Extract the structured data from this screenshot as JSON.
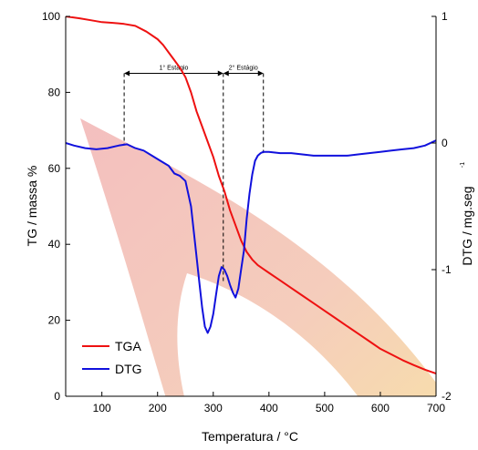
{
  "chart_data": {
    "type": "line",
    "xlabel": "Temperatura / °C",
    "ylabel_left": "TG / massa %",
    "ylabel_right_main": "DTG / mg.seg",
    "ylabel_right_exp": "-1",
    "xlim": [
      35,
      700
    ],
    "ylim_left": [
      0,
      100
    ],
    "ylim_right": [
      -2,
      1
    ],
    "xticks": [
      "100",
      "200",
      "300",
      "400",
      "500",
      "600",
      "700"
    ],
    "yticks_left": [
      "0",
      "20",
      "40",
      "60",
      "80",
      "100"
    ],
    "yticks_right": [
      "-2",
      "-1",
      "0",
      "1"
    ],
    "legend_position": "bottom-left",
    "colors": {
      "tga": "#ee1111",
      "dtg": "#1111dd"
    },
    "series": [
      {
        "name": "TGA",
        "axis": "left",
        "x": [
          35,
          60,
          80,
          100,
          120,
          140,
          160,
          180,
          200,
          210,
          220,
          230,
          240,
          250,
          260,
          270,
          280,
          290,
          300,
          310,
          320,
          330,
          340,
          350,
          360,
          370,
          380,
          390,
          400,
          420,
          440,
          460,
          480,
          500,
          520,
          540,
          560,
          580,
          600,
          620,
          640,
          660,
          680,
          700
        ],
        "y": [
          100,
          99.5,
          99,
          98.5,
          98.3,
          98,
          97.5,
          96,
          94,
          92.5,
          90.5,
          88.5,
          86.5,
          84,
          80,
          75,
          71,
          67,
          63,
          58,
          54,
          49,
          45,
          41,
          38,
          36,
          34.5,
          33.5,
          32.5,
          30.5,
          28.5,
          26.5,
          24.5,
          22.5,
          20.5,
          18.5,
          16.5,
          14.5,
          12.5,
          11,
          9.5,
          8.2,
          7,
          6
        ]
      },
      {
        "name": "DTG",
        "axis": "right",
        "x": [
          35,
          50,
          70,
          90,
          110,
          130,
          145,
          160,
          175,
          190,
          205,
          220,
          230,
          240,
          250,
          260,
          270,
          275,
          280,
          285,
          290,
          295,
          300,
          305,
          310,
          315,
          320,
          325,
          330,
          335,
          340,
          345,
          350,
          355,
          360,
          365,
          370,
          375,
          380,
          385,
          390,
          400,
          420,
          440,
          460,
          480,
          500,
          520,
          540,
          560,
          580,
          600,
          620,
          640,
          660,
          680,
          700
        ],
        "y": [
          0.0,
          -0.02,
          -0.04,
          -0.05,
          -0.04,
          -0.02,
          -0.01,
          -0.04,
          -0.06,
          -0.1,
          -0.14,
          -0.18,
          -0.24,
          -0.26,
          -0.3,
          -0.5,
          -0.9,
          -1.1,
          -1.3,
          -1.45,
          -1.5,
          -1.45,
          -1.35,
          -1.2,
          -1.05,
          -0.98,
          -1.0,
          -1.05,
          -1.12,
          -1.18,
          -1.22,
          -1.15,
          -1.0,
          -0.85,
          -0.6,
          -0.4,
          -0.25,
          -0.14,
          -0.1,
          -0.08,
          -0.07,
          -0.07,
          -0.08,
          -0.08,
          -0.09,
          -0.1,
          -0.1,
          -0.1,
          -0.1,
          -0.09,
          -0.08,
          -0.07,
          -0.06,
          -0.05,
          -0.04,
          -0.02,
          0.02
        ]
      }
    ],
    "stages": [
      {
        "label": "1° Estágio",
        "x_start": 140,
        "x_end": 318
      },
      {
        "label": "2° Estágio",
        "x_start": 318,
        "x_end": 390
      }
    ]
  }
}
